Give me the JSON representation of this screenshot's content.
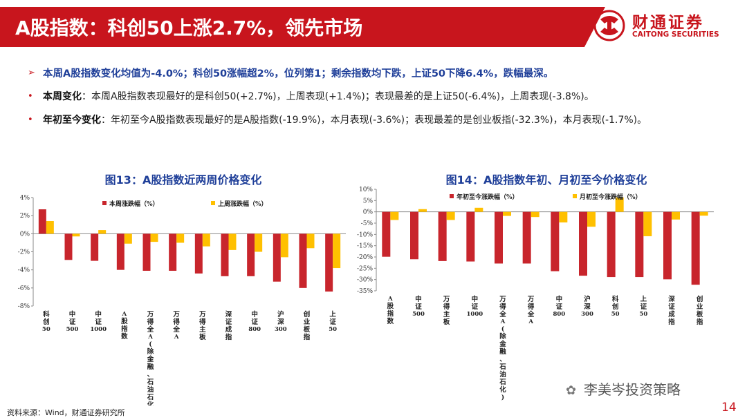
{
  "header": {
    "title": "A股指数：科创50上涨2.7%，领先市场",
    "brand_cn": "财通证券",
    "brand_en": "CAITONG SECURITIES",
    "accent_color": "#c8151d"
  },
  "bullets": {
    "lead": "本周A股指数变化均值为-4.0%；科创50涨幅超2%，位列第1；剩余指数均下跌，上证50下降6.4%，跌幅最深。",
    "items": [
      {
        "label": "本周变化",
        "text": "：本周A股指数表现最好的是科创50(+2.7%)，上周表现(+1.4%)；表现最差的是上证50(-6.4%)，上周表现(-3.8%)。"
      },
      {
        "label": "年初至今变化",
        "text": "：年初至今A股指数表现最好的是A股指数(-19.9%)，本月表现(-3.6%)；表现最差的是创业板指(-32.3%)，本月表现(-1.7%)。"
      }
    ]
  },
  "chart_data": [
    {
      "type": "bar",
      "title": "图13：A股指数近两周价格变化",
      "categories": [
        "科创50",
        "中证500",
        "中证1000",
        "A股指数",
        "万得全A(除金融、石油石化)",
        "万得全A",
        "万得主板",
        "深证成指",
        "中证800",
        "沪深300",
        "创业板指",
        "上证50"
      ],
      "series": [
        {
          "name": "本周涨跌幅（%）",
          "color": "#c8252c",
          "values": [
            2.7,
            -2.9,
            -3.0,
            -4.0,
            -4.1,
            -4.1,
            -4.4,
            -4.7,
            -4.7,
            -5.3,
            -6.0,
            -6.4
          ]
        },
        {
          "name": "上周涨跌幅（%）",
          "color": "#ffc000",
          "values": [
            1.4,
            -0.3,
            0.4,
            -1.1,
            -0.9,
            -1.0,
            -1.4,
            -1.8,
            -2.0,
            -2.6,
            -1.6,
            -3.8
          ]
        }
      ],
      "ylim": [
        -8,
        4
      ],
      "yticks": [
        4,
        2,
        0,
        -2,
        -4,
        -6,
        -8
      ],
      "ytick_labels": [
        "4%",
        "2%",
        "0%",
        "-2%",
        "-4%",
        "-6%",
        "-8%"
      ],
      "legend_position": "top",
      "grid": false
    },
    {
      "type": "bar",
      "title": "图14：A股指数年初、月初至今价格变化",
      "categories": [
        "A股指数",
        "中证500",
        "万得主板",
        "中证1000",
        "万得全A(除金融、石油石化)",
        "万得全A",
        "中证800",
        "沪深300",
        "科创50",
        "上证50",
        "深证成指",
        "创业板指"
      ],
      "series": [
        {
          "name": "年初至今涨跌幅（%）",
          "color": "#c8252c",
          "values": [
            -19.9,
            -21.0,
            -21.8,
            -22.0,
            -22.9,
            -22.9,
            -26.3,
            -28.3,
            -28.9,
            -28.9,
            -29.9,
            -32.3
          ]
        },
        {
          "name": "月初至今涨跌幅（%）",
          "color": "#ffc000",
          "values": [
            -3.6,
            1.2,
            -3.6,
            1.8,
            -1.8,
            -2.3,
            -4.7,
            -6.6,
            6.4,
            -10.8,
            -3.4,
            -1.7
          ]
        }
      ],
      "ylim": [
        -35,
        10
      ],
      "yticks": [
        10,
        5,
        0,
        -5,
        -10,
        -15,
        -20,
        -25,
        -30,
        -35
      ],
      "ytick_labels": [
        "10%",
        "5%",
        "0%",
        "-5%",
        "-10%",
        "-15%",
        "-20%",
        "-25%",
        "-30%",
        "-35%"
      ],
      "legend_position": "top",
      "grid": false
    }
  ],
  "footer": {
    "source": "资料来源：Wind，财通证券研究所",
    "watermark": "李美岑投资策略",
    "page_number": "14"
  }
}
